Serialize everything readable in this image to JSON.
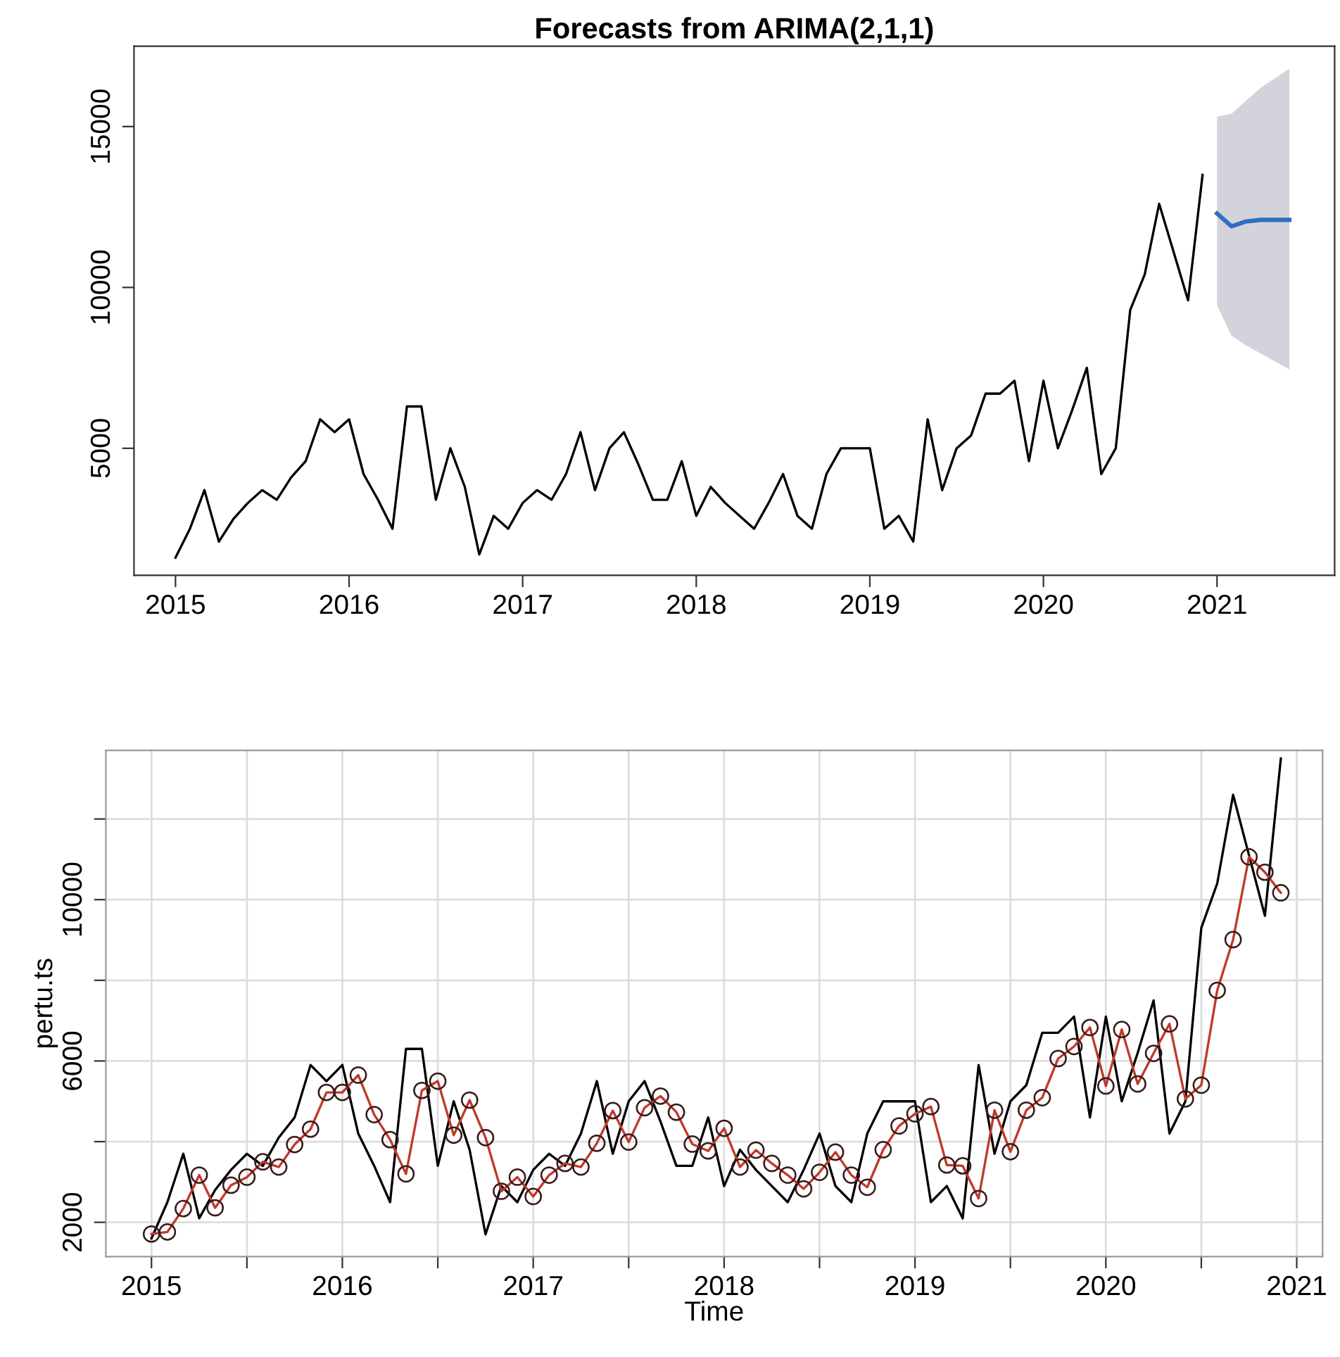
{
  "chart_data": [
    {
      "type": "line",
      "title": "Forecasts from ARIMA(2,1,1)",
      "xlim": [
        "2014-10-05",
        "2021-09-05"
      ],
      "ylim": [
        1050,
        17500
      ],
      "xticks": [
        {
          "value": "2015-01",
          "label": "2015"
        },
        {
          "value": "2016-01",
          "label": "2016"
        },
        {
          "value": "2017-01",
          "label": "2017"
        },
        {
          "value": "2018-01",
          "label": "2018"
        },
        {
          "value": "2019-01",
          "label": "2019"
        },
        {
          "value": "2020-01",
          "label": "2020"
        },
        {
          "value": "2021-01",
          "label": "2021"
        }
      ],
      "yticks": [
        5000,
        10000,
        15000
      ],
      "grid": false,
      "series": [
        {
          "color": "#000000",
          "x": [
            "2015-01",
            "2015-02",
            "2015-03",
            "2015-04",
            "2015-05",
            "2015-06",
            "2015-07",
            "2015-08",
            "2015-09",
            "2015-10",
            "2015-11",
            "2015-12",
            "2016-01",
            "2016-02",
            "2016-03",
            "2016-04",
            "2016-05",
            "2016-06",
            "2016-07",
            "2016-08",
            "2016-09",
            "2016-10",
            "2016-11",
            "2016-12",
            "2017-01",
            "2017-02",
            "2017-03",
            "2017-04",
            "2017-05",
            "2017-06",
            "2017-07",
            "2017-08",
            "2017-09",
            "2017-10",
            "2017-11",
            "2017-12",
            "2018-01",
            "2018-02",
            "2018-03",
            "2018-04",
            "2018-05",
            "2018-06",
            "2018-07",
            "2018-08",
            "2018-09",
            "2018-10",
            "2018-11",
            "2018-12",
            "2019-01",
            "2019-02",
            "2019-03",
            "2019-04",
            "2019-05",
            "2019-06",
            "2019-07",
            "2019-08",
            "2019-09",
            "2019-10",
            "2019-11",
            "2019-12",
            "2020-01",
            "2020-02",
            "2020-03",
            "2020-04",
            "2020-05",
            "2020-06",
            "2020-07",
            "2020-08",
            "2020-09",
            "2020-10",
            "2020-11",
            "2020-12"
          ],
          "values": [
            1600,
            2500,
            3700,
            2100,
            2800,
            3300,
            3700,
            3400,
            4100,
            4600,
            5900,
            5500,
            5900,
            4200,
            3400,
            2500,
            6300,
            6300,
            3400,
            5000,
            3800,
            1700,
            2900,
            2500,
            3300,
            3700,
            3400,
            4200,
            5500,
            3700,
            5000,
            5500,
            4500,
            3400,
            3400,
            4600,
            2900,
            3800,
            3300,
            2900,
            2500,
            3300,
            4200,
            2900,
            2500,
            4200,
            5000,
            5000,
            5000,
            2500,
            2900,
            2100,
            5900,
            3700,
            5000,
            5400,
            6700,
            6700,
            7100,
            4600,
            7100,
            5000,
            6200,
            7500,
            4200,
            5000,
            9300,
            10400,
            12600,
            11100,
            9600,
            13500
          ]
        },
        {
          "color": "#2e6fbf",
          "x": [
            "2021-01",
            "2021-02",
            "2021-03",
            "2021-04",
            "2021-05",
            "2021-06"
          ],
          "values": [
            12300,
            11900,
            12050,
            12100,
            12100,
            12100
          ],
          "lower": [
            9450,
            8500,
            8200,
            7950,
            7700,
            7450
          ],
          "upper": [
            15300,
            15400,
            15800,
            16200,
            16500,
            16800
          ]
        }
      ]
    },
    {
      "type": "line",
      "xlabel": "Time",
      "ylabel": "pertu.ts",
      "xlim": [
        "2014-10-05",
        "2021-02-20"
      ],
      "ylim": [
        1150,
        13700
      ],
      "xticks": [
        {
          "value": "2015-01",
          "label": "2015"
        },
        {
          "value": "2015-07",
          "label": null
        },
        {
          "value": "2016-01",
          "label": "2016"
        },
        {
          "value": "2016-07",
          "label": null
        },
        {
          "value": "2017-01",
          "label": "2017"
        },
        {
          "value": "2017-07",
          "label": null
        },
        {
          "value": "2018-01",
          "label": "2018"
        },
        {
          "value": "2018-07",
          "label": null
        },
        {
          "value": "2019-01",
          "label": "2019"
        },
        {
          "value": "2019-07",
          "label": null
        },
        {
          "value": "2020-01",
          "label": "2020"
        },
        {
          "value": "2020-07",
          "label": null
        },
        {
          "value": "2021-01",
          "label": "2021"
        }
      ],
      "yticks": [
        2000,
        {
          "value": 4000,
          "label": null
        },
        6000,
        {
          "value": 8000,
          "label": null
        },
        10000,
        {
          "value": 12000,
          "label": null
        }
      ],
      "grid": true,
      "series": [
        {
          "color": "#000000",
          "x": [
            "2015-01",
            "2015-02",
            "2015-03",
            "2015-04",
            "2015-05",
            "2015-06",
            "2015-07",
            "2015-08",
            "2015-09",
            "2015-10",
            "2015-11",
            "2015-12",
            "2016-01",
            "2016-02",
            "2016-03",
            "2016-04",
            "2016-05",
            "2016-06",
            "2016-07",
            "2016-08",
            "2016-09",
            "2016-10",
            "2016-11",
            "2016-12",
            "2017-01",
            "2017-02",
            "2017-03",
            "2017-04",
            "2017-05",
            "2017-06",
            "2017-07",
            "2017-08",
            "2017-09",
            "2017-10",
            "2017-11",
            "2017-12",
            "2018-01",
            "2018-02",
            "2018-03",
            "2018-04",
            "2018-05",
            "2018-06",
            "2018-07",
            "2018-08",
            "2018-09",
            "2018-10",
            "2018-11",
            "2018-12",
            "2019-01",
            "2019-02",
            "2019-03",
            "2019-04",
            "2019-05",
            "2019-06",
            "2019-07",
            "2019-08",
            "2019-09",
            "2019-10",
            "2019-11",
            "2019-12",
            "2020-01",
            "2020-02",
            "2020-03",
            "2020-04",
            "2020-05",
            "2020-06",
            "2020-07",
            "2020-08",
            "2020-09",
            "2020-10",
            "2020-11",
            "2020-12"
          ],
          "values": [
            1600,
            2500,
            3700,
            2100,
            2800,
            3300,
            3700,
            3400,
            4100,
            4600,
            5900,
            5500,
            5900,
            4200,
            3400,
            2500,
            6300,
            6300,
            3400,
            5000,
            3800,
            1700,
            2900,
            2500,
            3300,
            3700,
            3400,
            4200,
            5500,
            3700,
            5000,
            5500,
            4500,
            3400,
            3400,
            4600,
            2900,
            3800,
            3300,
            2900,
            2500,
            3300,
            4200,
            2900,
            2500,
            4200,
            5000,
            5000,
            5000,
            2500,
            2900,
            2100,
            5900,
            3700,
            5000,
            5400,
            6700,
            6700,
            7100,
            4600,
            7100,
            5000,
            6200,
            7500,
            4200,
            5000,
            9300,
            10400,
            12600,
            11100,
            9600,
            13500
          ]
        },
        {
          "color": "#c0392b",
          "marker": "circle",
          "x": [
            "2015-01",
            "2015-02",
            "2015-03",
            "2015-04",
            "2015-05",
            "2015-06",
            "2015-07",
            "2015-08",
            "2015-09",
            "2015-10",
            "2015-11",
            "2015-12",
            "2016-01",
            "2016-02",
            "2016-03",
            "2016-04",
            "2016-05",
            "2016-06",
            "2016-07",
            "2016-08",
            "2016-09",
            "2016-10",
            "2016-11",
            "2016-12",
            "2017-01",
            "2017-02",
            "2017-03",
            "2017-04",
            "2017-05",
            "2017-06",
            "2017-07",
            "2017-08",
            "2017-09",
            "2017-10",
            "2017-11",
            "2017-12",
            "2018-01",
            "2018-02",
            "2018-03",
            "2018-04",
            "2018-05",
            "2018-06",
            "2018-07",
            "2018-08",
            "2018-09",
            "2018-10",
            "2018-11",
            "2018-12",
            "2019-01",
            "2019-02",
            "2019-03",
            "2019-04",
            "2019-05",
            "2019-06",
            "2019-07",
            "2019-08",
            "2019-09",
            "2019-10",
            "2019-11",
            "2019-12",
            "2020-01",
            "2020-02",
            "2020-03",
            "2020-04",
            "2020-05",
            "2020-06",
            "2020-07",
            "2020-08",
            "2020-09",
            "2020-10",
            "2020-11",
            "2020-12"
          ],
          "values": [
            1710,
            1760,
            2340,
            3170,
            2360,
            2920,
            3120,
            3500,
            3370,
            3930,
            4310,
            5220,
            5220,
            5650,
            4670,
            4050,
            3200,
            5270,
            5500,
            4160,
            5030,
            4100,
            2770,
            3120,
            2640,
            3170,
            3460,
            3370,
            3960,
            4770,
            3990,
            4840,
            5130,
            4730,
            3940,
            3770,
            4330,
            3370,
            3790,
            3460,
            3170,
            2830,
            3240,
            3740,
            3170,
            2870,
            3800,
            4390,
            4690,
            4870,
            3420,
            3400,
            2590,
            4780,
            3750,
            4780,
            5090,
            6060,
            6360,
            6830,
            5380,
            6780,
            5430,
            6190,
            6920,
            5060,
            5400,
            7750,
            9010,
            11060,
            10680,
            10170
          ]
        }
      ]
    }
  ]
}
